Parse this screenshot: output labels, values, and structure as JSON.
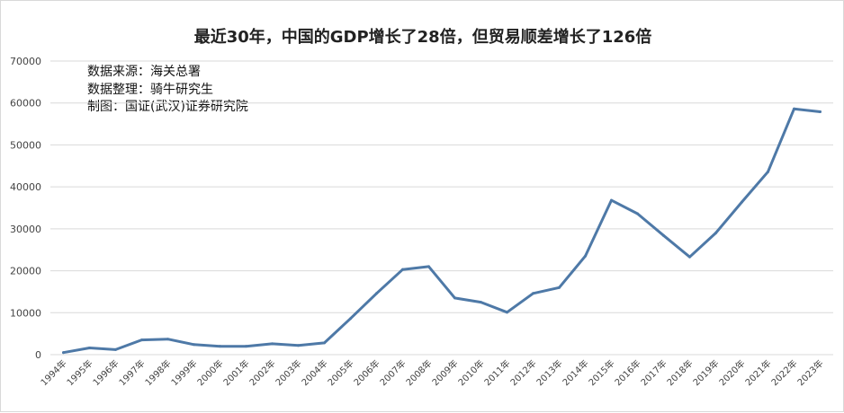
{
  "chart_data": {
    "type": "line",
    "title": "最近30年，中国的GDP增长了28倍，但贸易顺差增长了126倍",
    "annotations": [
      "数据来源：海关总署",
      "数据整理：骑牛研究生",
      "制图：国证(武汉)证券研究院"
    ],
    "categories": [
      "1994年",
      "1995年",
      "1996年",
      "1997年",
      "1998年",
      "1999年",
      "2000年",
      "2001年",
      "2002年",
      "2003年",
      "2004年",
      "2005年",
      "2006年",
      "2007年",
      "2008年",
      "2009年",
      "2010年",
      "2011年",
      "2012年",
      "2013年",
      "2014年",
      "2015年",
      "2016年",
      "2017年",
      "2018年",
      "2019年",
      "2020年",
      "2021年",
      "2022年",
      "2023年"
    ],
    "series": [
      {
        "values": [
          500,
          1600,
          1200,
          3500,
          3700,
          2400,
          2000,
          2000,
          2600,
          2200,
          2800,
          8600,
          14600,
          20300,
          21000,
          13500,
          12500,
          10100,
          14600,
          16000,
          23500,
          36800,
          33600,
          28400,
          23300,
          29000,
          36400,
          43600,
          58600,
          57900
        ],
        "color": "#4e79a7"
      }
    ],
    "yticks": [
      0,
      10000,
      20000,
      30000,
      40000,
      50000,
      60000,
      70000
    ],
    "ylim": [
      0,
      70000
    ],
    "grid": true,
    "gridline_color": "#d9d9d9"
  }
}
